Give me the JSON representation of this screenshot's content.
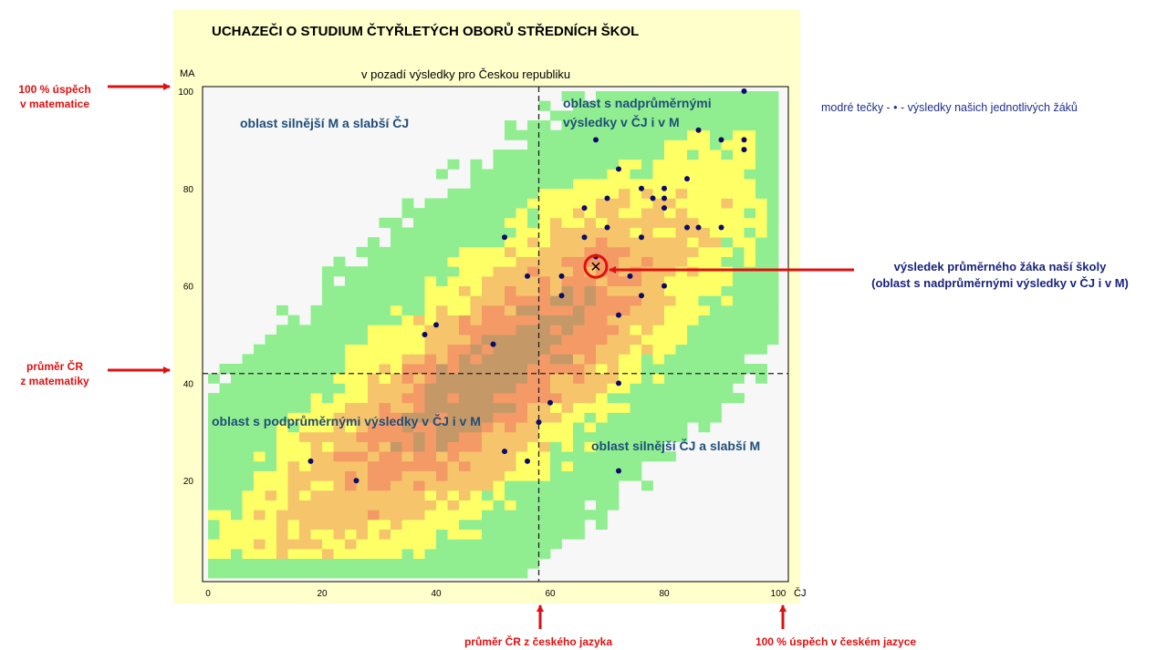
{
  "chart_data": {
    "type": "scatter",
    "title": "UCHAZEČI O STUDIUM ČTYŘLETÝCH OBORŮ STŘEDNÍCH ŠKOL",
    "subtitle": "v pozadí výsledky pro Českou republiku",
    "xlabel": "ČJ",
    "ylabel": "MA",
    "xlim": [
      0,
      100
    ],
    "ylim": [
      0,
      100
    ],
    "x_ticks": [
      0,
      20,
      40,
      60,
      80,
      100
    ],
    "y_ticks": [
      20,
      40,
      60,
      80,
      100
    ],
    "mean_cr": {
      "cj": 58,
      "ma": 42
    },
    "school_average": {
      "cj": 68,
      "ma": 64
    },
    "series": [
      {
        "points": [
          [
            94,
            100
          ],
          [
            68,
            90
          ],
          [
            86,
            92
          ],
          [
            90,
            90
          ],
          [
            94,
            90
          ],
          [
            94,
            88
          ],
          [
            72,
            84
          ],
          [
            84,
            82
          ],
          [
            76,
            80
          ],
          [
            80,
            80
          ],
          [
            78,
            78
          ],
          [
            80,
            78
          ],
          [
            66,
            76
          ],
          [
            70,
            78
          ],
          [
            80,
            76
          ],
          [
            70,
            72
          ],
          [
            84,
            72
          ],
          [
            86,
            72
          ],
          [
            90,
            72
          ],
          [
            52,
            70
          ],
          [
            66,
            70
          ],
          [
            76,
            70
          ],
          [
            68,
            66
          ],
          [
            56,
            62
          ],
          [
            62,
            62
          ],
          [
            74,
            62
          ],
          [
            80,
            60
          ],
          [
            62,
            58
          ],
          [
            76,
            58
          ],
          [
            72,
            54
          ],
          [
            40,
            52
          ],
          [
            38,
            50
          ],
          [
            50,
            48
          ],
          [
            72,
            40
          ],
          [
            60,
            36
          ],
          [
            58,
            32
          ],
          [
            52,
            26
          ],
          [
            56,
            24
          ],
          [
            18,
            24
          ],
          [
            26,
            20
          ],
          [
            72,
            22
          ]
        ]
      }
    ]
  },
  "regions": {
    "top_left": "oblast silnější M a slabší ČJ",
    "top_right_1": "oblast s nadprůměrnými",
    "top_right_2": "výsledky v ČJ i v M",
    "bottom_left": "oblast s podprůměrnými výsledky v ČJ i v M",
    "bottom_right": "oblast silnější ČJ a slabší M"
  },
  "annotations": {
    "ma100_1": "100 % úspěch",
    "ma100_2": "v matematice",
    "mean_ma_1": "průměr ČR",
    "mean_ma_2": "z matematiky",
    "mean_cj": "průměr ČR z českého jazyka",
    "cj100": "100 % úspěch v českém jazyce",
    "legend": "modré tečky - • - výsledky našich jednotlivých žáků",
    "avg_1": "výsledek průměrného žáka naší školy",
    "avg_2": "(oblast s nadprůměrnými  výsledky v ČJ i v M)"
  },
  "colors": {
    "panel": "#ffffcc",
    "plot_bg": "#f7f7f7",
    "density": [
      "#90ee90",
      "#ffff66",
      "#f6c46a",
      "#f49a66",
      "#c59868"
    ],
    "dots": "#0b0b6b",
    "arrows": "#e01010",
    "region_text": "#1f4e79"
  }
}
